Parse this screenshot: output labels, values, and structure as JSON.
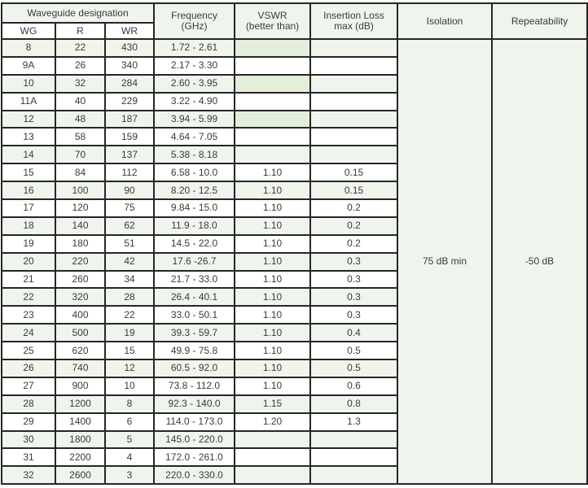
{
  "header": {
    "group": "Waveguide designation",
    "wg": "WG",
    "r": "R",
    "wr": "WR",
    "frequency": "Frequency",
    "frequency_unit": "(GHz)",
    "vswr": "VSWR",
    "vswr_sub": "(better than)",
    "insertion_loss": "Insertion Loss",
    "insertion_loss_sub": "max (dB)",
    "isolation": "Isolation",
    "repeatability": "Repeatability"
  },
  "isolation_value": "75 dB min",
  "repeatability_value": "-50 dB",
  "colors": {
    "shade": "#eff5ec",
    "shade_dark": "#e3eedb",
    "border": "#262626"
  },
  "rows": [
    [
      "8",
      "22",
      "430",
      "1.72 - 2.61",
      "",
      ""
    ],
    [
      "9A",
      "26",
      "340",
      "2.17 - 3.30",
      "",
      ""
    ],
    [
      "10",
      "32",
      "284",
      "2.60 - 3.95",
      "",
      ""
    ],
    [
      "11A",
      "40",
      "229",
      "3.22 - 4.90",
      "",
      ""
    ],
    [
      "12",
      "48",
      "187",
      "3.94 - 5.99",
      "",
      ""
    ],
    [
      "13",
      "58",
      "159",
      "4.64 - 7.05",
      "",
      ""
    ],
    [
      "14",
      "70",
      "137",
      "5.38 - 8.18",
      "",
      ""
    ],
    [
      "15",
      "84",
      "112",
      "6.58 - 10.0",
      "1.10",
      "0.15"
    ],
    [
      "16",
      "100",
      "90",
      "8.20 - 12.5",
      "1.10",
      "0.15"
    ],
    [
      "17",
      "120",
      "75",
      "9.84 - 15.0",
      "1.10",
      "0.2"
    ],
    [
      "18",
      "140",
      "62",
      "11.9 - 18.0",
      "1.10",
      "0.2"
    ],
    [
      "19",
      "180",
      "51",
      "14.5 - 22.0",
      "1.10",
      "0.2"
    ],
    [
      "20",
      "220",
      "42",
      "17.6 -26.7",
      "1.10",
      "0.3"
    ],
    [
      "21",
      "260",
      "34",
      "21.7 - 33.0",
      "1.10",
      "0.3"
    ],
    [
      "22",
      "320",
      "28",
      "26.4 - 40.1",
      "1.10",
      "0.3"
    ],
    [
      "23",
      "400",
      "22",
      "33.0 - 50.1",
      "1.10",
      "0.3"
    ],
    [
      "24",
      "500",
      "19",
      "39.3 - 59.7",
      "1.10",
      "0.4"
    ],
    [
      "25",
      "620",
      "15",
      "49.9 - 75.8",
      "1.10",
      "0.5"
    ],
    [
      "26",
      "740",
      "12",
      "60.5 - 92.0",
      "1.10",
      "0.5"
    ],
    [
      "27",
      "900",
      "10",
      "73.8 - 112.0",
      "1.10",
      "0.6"
    ],
    [
      "28",
      "1200",
      "8",
      "92.3 - 140.0",
      "1.15",
      "0.8"
    ],
    [
      "29",
      "1400",
      "6",
      "114.0 - 173.0",
      "1.20",
      "1.3"
    ],
    [
      "30",
      "1800",
      "5",
      "145.0 - 220.0",
      "",
      ""
    ],
    [
      "31",
      "2200",
      "4",
      "172.0 - 261.0",
      "",
      ""
    ],
    [
      "32",
      "2600",
      "3",
      "220.0 - 330.0",
      "",
      ""
    ]
  ]
}
